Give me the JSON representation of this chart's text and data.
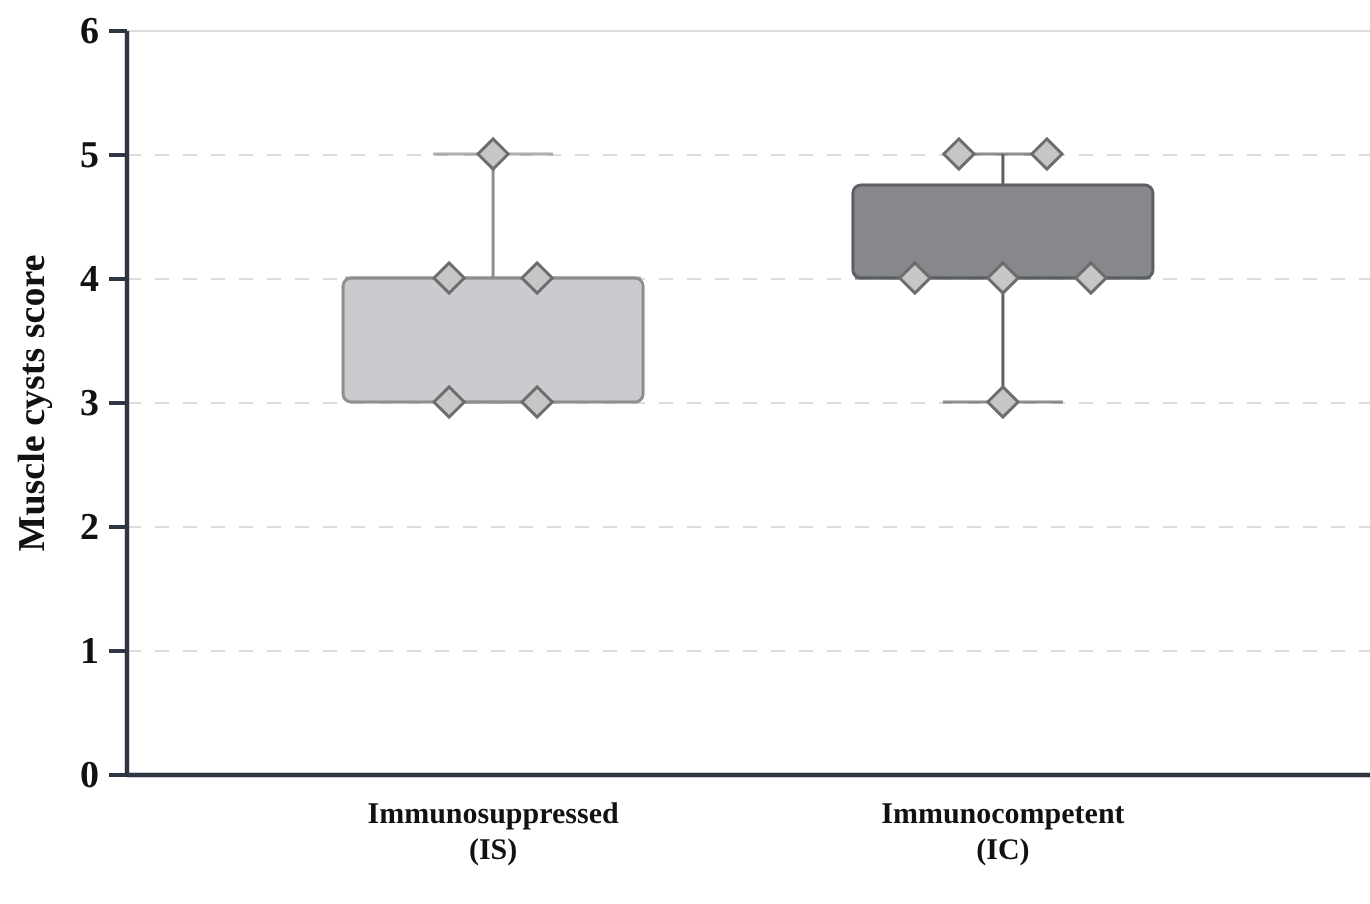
{
  "chart_data": {
    "type": "box",
    "ylabel": "Muscle cysts score",
    "categories": [
      "Immunosuppressed\n(IS)",
      "Immunocompetent\n(IC)"
    ],
    "ylim": [
      0,
      6
    ],
    "yticks": [
      0,
      1,
      2,
      3,
      4,
      5,
      6
    ],
    "grid": "y",
    "colors": [
      "#c9cbce",
      "#86888d"
    ],
    "boxes": [
      {
        "low": 3,
        "q1": 3,
        "median": 4,
        "q3": 4,
        "high": 5
      },
      {
        "low": 3,
        "q1": 4,
        "median": 4,
        "q3": 4.75,
        "high": 5
      }
    ],
    "series": [
      {
        "type": "scatter",
        "color": "#c6c6c6",
        "marker": "diamond",
        "x": [
          "Immunosuppressed\n(IS)",
          "Immunosuppressed\n(IS)",
          "Immunosuppressed\n(IS)",
          "Immunosuppressed\n(IS)",
          "Immunosuppressed\n(IS)",
          "Immunocompetent\n(IC)",
          "Immunocompetent\n(IC)",
          "Immunocompetent\n(IC)",
          "Immunocompetent\n(IC)",
          "Immunocompetent\n(IC)",
          "Immunocompetent\n(IC)"
        ],
        "values": [
          5,
          4,
          4,
          3,
          3,
          5,
          5,
          4,
          4,
          4,
          3
        ]
      }
    ]
  }
}
